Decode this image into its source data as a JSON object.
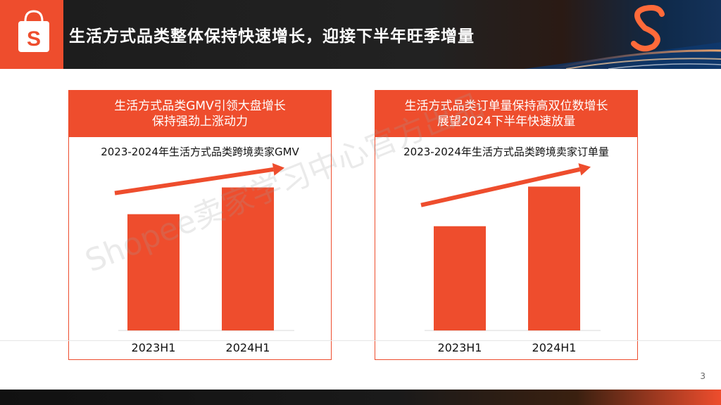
{
  "header": {
    "title": "生活方式品类整体保持快速增长，迎接下半年旺季增量",
    "logo_letter": "S"
  },
  "colors": {
    "accent": "#ee4d2d",
    "header_bg": "#1c1c1c"
  },
  "panels": [
    {
      "head_line1": "生活方式品类GMV引领大盘增长",
      "head_line2": "保持强劲上涨动力"
    },
    {
      "head_line1": "生活方式品类订单量保持高双位数增长",
      "head_line2": "展望2024下半年快速放量"
    }
  ],
  "chart_data": [
    {
      "type": "bar",
      "title": "2023-2024年生活方式品类跨境卖家GMV",
      "categories": [
        "2023H1",
        "2024H1"
      ],
      "values": [
        100,
        123
      ],
      "ylim": [
        0,
        130
      ],
      "trend_arrow": true
    },
    {
      "type": "bar",
      "title": "2023-2024年生活方式品类跨境卖家订单量",
      "categories": [
        "2023H1",
        "2024H1"
      ],
      "values": [
        100,
        138
      ],
      "ylim": [
        0,
        145
      ],
      "trend_arrow": true
    }
  ],
  "watermark": "Shopee卖家学习中心官方出品",
  "page_number": "3"
}
